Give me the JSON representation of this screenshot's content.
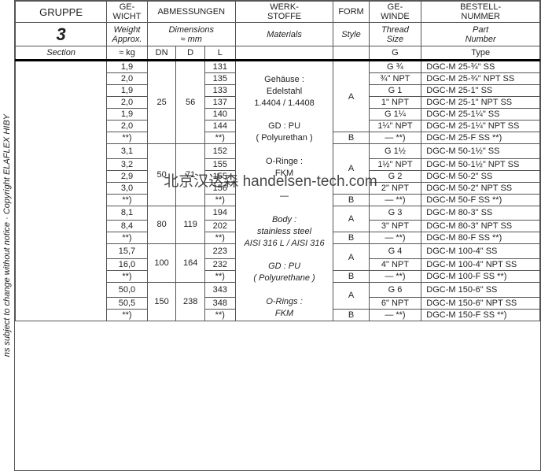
{
  "sideText": "ns subject to change without notice · Copyright ELAFLEX HIBY",
  "watermark": "北京汉达森 handelsen-tech.com",
  "headers": {
    "row1": {
      "gruppe": "GRUPPE",
      "gewicht": "GE-\nWICHT",
      "abm": "ABMESSUNGEN",
      "werk": "WERK-\nSTOFFE",
      "form": "FORM",
      "gewinde": "GE-\nWINDE",
      "bestell": "BESTELL-\nNUMMER"
    },
    "row2": {
      "gruppe": "3",
      "gewicht": "Weight\nApprox.",
      "abm": "Dimensions\n≈ mm",
      "werk": "Materials",
      "form": "Style",
      "gewinde": "Thread\nSize",
      "bestell": "Part\nNumber"
    },
    "row3": {
      "gruppe": "Section",
      "gewicht": "≈ kg",
      "dn": "DN",
      "d": "D",
      "l": "L",
      "werk": "",
      "form": "",
      "gewinde": "G",
      "bestell": "Type"
    }
  },
  "materials": {
    "de1": "Gehäuse :",
    "de2": "Edelstahl",
    "de3": "1.4404 / 1.4408",
    "de4": "GD : PU",
    "de5": "( Polyurethan )",
    "de6": "O-Ringe :",
    "de7": "FKM",
    "sep": "—",
    "en1": "Body :",
    "en2": "stainless steel",
    "en3": "AISI 316 L / AISI 316",
    "en4": "GD : PU",
    "en5": "( Polyurethane )",
    "en6": "O-Rings :",
    "en7": "FKM"
  },
  "groups": [
    {
      "dn": "25",
      "d": "56",
      "formA_rows": 6,
      "rows": [
        {
          "wt": "1,9",
          "l": "131",
          "th": "G ¾",
          "pn": "DGC-M 25-¾\" SS"
        },
        {
          "wt": "2,0",
          "l": "135",
          "th": "¾\" NPT",
          "pn": "DGC-M 25-¾\" NPT SS"
        },
        {
          "wt": "1,9",
          "l": "133",
          "th": "G 1",
          "pn": "DGC-M 25-1\" SS"
        },
        {
          "wt": "2,0",
          "l": "137",
          "th": "1\" NPT",
          "pn": "DGC-M 25-1\" NPT SS"
        },
        {
          "wt": "1,9",
          "l": "140",
          "th": "G 1¼",
          "pn": "DGC-M 25-1¼\" SS"
        },
        {
          "wt": "2,0",
          "l": "144",
          "th": "1¼\" NPT",
          "pn": "DGC-M 25-1¼\" NPT SS"
        },
        {
          "wt": "**)",
          "l": "**)",
          "th": "— **)",
          "pn": "DGC-M 25-F SS **)",
          "formB": true
        }
      ]
    },
    {
      "dn": "50",
      "d": "71",
      "formA_rows": 4,
      "rows": [
        {
          "wt": "3,1",
          "l": "152",
          "th": "G 1½",
          "pn": "DGC-M 50-1½\" SS"
        },
        {
          "wt": "3,2",
          "l": "155",
          "th": "1½\" NPT",
          "pn": "DGC-M 50-1½\" NPT SS"
        },
        {
          "wt": "2,9",
          "l": "155",
          "th": "G 2",
          "pn": "DGC-M 50-2\" SS"
        },
        {
          "wt": "3,0",
          "l": "156",
          "th": "2\" NPT",
          "pn": "DGC-M 50-2\" NPT SS"
        },
        {
          "wt": "**)",
          "l": "**)",
          "th": "— **)",
          "pn": "DGC-M 50-F SS **)",
          "formB": true
        }
      ]
    },
    {
      "dn": "80",
      "d": "119",
      "formA_rows": 2,
      "rows": [
        {
          "wt": "8,1",
          "l": "194",
          "th": "G 3",
          "pn": "DGC-M 80-3\" SS"
        },
        {
          "wt": "8,4",
          "l": "202",
          "th": "3\" NPT",
          "pn": "DGC-M 80-3\" NPT SS"
        },
        {
          "wt": "**)",
          "l": "**)",
          "th": "— **)",
          "pn": "DGC-M 80-F SS **)",
          "formB": true
        }
      ]
    },
    {
      "dn": "100",
      "d": "164",
      "formA_rows": 2,
      "rows": [
        {
          "wt": "15,7",
          "l": "223",
          "th": "G 4",
          "pn": "DGC-M 100-4\" SS"
        },
        {
          "wt": "16,0",
          "l": "232",
          "th": "4\" NPT",
          "pn": "DGC-M 100-4\" NPT SS"
        },
        {
          "wt": "**)",
          "l": "**)",
          "th": "— **)",
          "pn": "DGC-M 100-F SS **)",
          "formB": true
        }
      ]
    },
    {
      "dn": "150",
      "d": "238",
      "formA_rows": 2,
      "rows": [
        {
          "wt": "50,0",
          "l": "343",
          "th": "G 6",
          "pn": "DGC-M 150-6\" SS"
        },
        {
          "wt": "50,5",
          "l": "348",
          "th": "6\" NPT",
          "pn": "DGC-M 150-6\" NPT SS"
        },
        {
          "wt": "**)",
          "l": "**)",
          "th": "— **)",
          "pn": "DGC-M 150-F SS **)",
          "formB": true
        }
      ]
    }
  ],
  "colors": {
    "border": "#555555",
    "text": "#222222",
    "thick": "#000000",
    "bg": "#ffffff"
  }
}
